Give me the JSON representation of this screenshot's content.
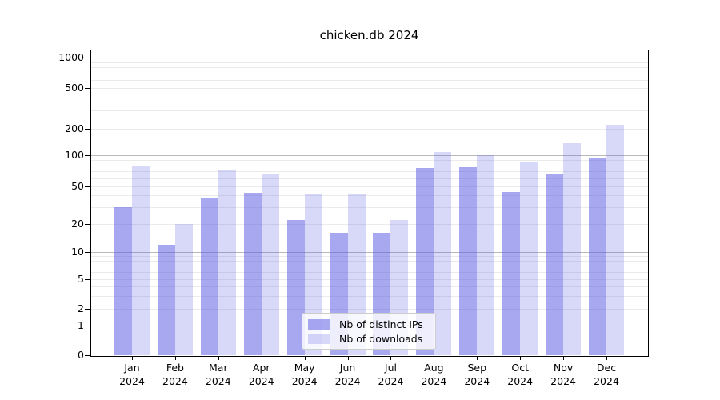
{
  "title": "chicken.db 2024",
  "chart_data": {
    "type": "bar",
    "title": "chicken.db 2024",
    "categories": [
      {
        "month": "Jan",
        "year": "2024"
      },
      {
        "month": "Feb",
        "year": "2024"
      },
      {
        "month": "Mar",
        "year": "2024"
      },
      {
        "month": "Apr",
        "year": "2024"
      },
      {
        "month": "May",
        "year": "2024"
      },
      {
        "month": "Jun",
        "year": "2024"
      },
      {
        "month": "Jul",
        "year": "2024"
      },
      {
        "month": "Aug",
        "year": "2024"
      },
      {
        "month": "Sep",
        "year": "2024"
      },
      {
        "month": "Oct",
        "year": "2024"
      },
      {
        "month": "Nov",
        "year": "2024"
      },
      {
        "month": "Dec",
        "year": "2024"
      }
    ],
    "series": [
      {
        "name": "Nb of distinct IPs",
        "color": "rgba(88,88,228,0.52)",
        "values": [
          30,
          12,
          37,
          43,
          22,
          16,
          16,
          75,
          76,
          44,
          66,
          95
        ]
      },
      {
        "name": "Nb of downloads",
        "color": "rgba(88,88,228,0.23)",
        "values": [
          80,
          20,
          71,
          65,
          42,
          41,
          22,
          109,
          100,
          86,
          136,
          220
        ]
      }
    ],
    "xlabel": "",
    "ylabel": "",
    "yscale": "symlog",
    "yticks": [
      0,
      1,
      2,
      5,
      10,
      20,
      50,
      100,
      200,
      500,
      1000
    ],
    "ylim": [
      0,
      1300
    ],
    "grid": true,
    "legend_position": "lower center",
    "grid_major_color": "#b9b9b9",
    "grid_minor_color": "#ebebeb"
  }
}
